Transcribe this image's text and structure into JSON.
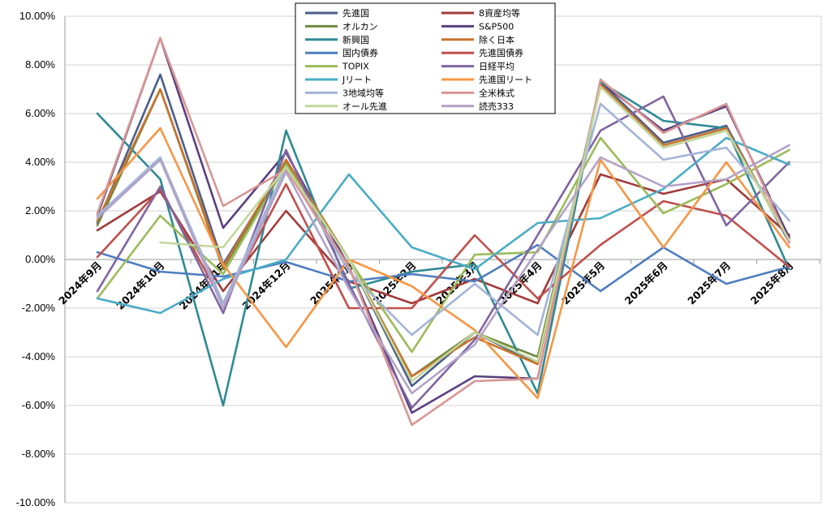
{
  "chart_data": {
    "type": "line",
    "title": "",
    "xlabel": "",
    "ylabel": "",
    "ylim": [
      -0.1,
      0.1
    ],
    "y_ticks": [
      "10.00%",
      "8.00%",
      "6.00%",
      "4.00%",
      "2.00%",
      "0.00%",
      "-2.00%",
      "-4.00%",
      "-6.00%",
      "-8.00%",
      "-10.00%"
    ],
    "y_tick_values": [
      0.1,
      0.08,
      0.06,
      0.04,
      0.02,
      0.0,
      -0.02,
      -0.04,
      -0.06,
      -0.08,
      -0.1
    ],
    "grid": true,
    "legend_position": "top-center",
    "categories": [
      "2024年9月",
      "2024年10月",
      "2024年11月",
      "2024年12月",
      "2025年1月",
      "2025年2月",
      "2025年3月",
      "2025年4月",
      "2025年5月",
      "2025年6月",
      "2025年7月",
      "2025年8月"
    ],
    "series": [
      {
        "name": "先進国",
        "color": "#4a5e8c",
        "values": [
          1.5,
          7.6,
          -0.2,
          4.0,
          0.0,
          -5.2,
          -3.0,
          -4.3,
          7.3,
          4.8,
          5.5,
          0.7
        ]
      },
      {
        "name": "8資産均等",
        "color": "#a23b3b",
        "values": [
          1.2,
          2.8,
          -1.3,
          2.0,
          -0.9,
          -1.8,
          -0.8,
          -1.8,
          3.5,
          2.7,
          3.3,
          1.0
        ]
      },
      {
        "name": "オルカン",
        "color": "#6e8b3d",
        "values": [
          1.4,
          7.0,
          -0.4,
          4.0,
          0.0,
          -4.8,
          -3.0,
          -4.0,
          7.1,
          4.6,
          5.3,
          0.8
        ]
      },
      {
        "name": "S&P500",
        "color": "#5b3f80",
        "values": [
          1.8,
          9.1,
          1.3,
          4.4,
          -0.3,
          -6.3,
          -4.8,
          -4.9,
          7.3,
          5.3,
          6.3,
          0.9
        ]
      },
      {
        "name": "新興国",
        "color": "#2e8a94",
        "values": [
          6.0,
          3.3,
          -6.0,
          5.3,
          -1.2,
          -0.5,
          -0.2,
          -5.5,
          7.3,
          5.7,
          5.4,
          -0.4
        ]
      },
      {
        "name": "除く日本",
        "color": "#c8732e",
        "values": [
          1.6,
          7.0,
          -0.3,
          4.1,
          0.0,
          -4.8,
          -3.2,
          -4.3,
          7.2,
          4.7,
          5.4,
          0.8
        ]
      },
      {
        "name": "国内債券",
        "color": "#4f7ec0",
        "values": [
          0.3,
          -0.5,
          -0.7,
          -0.1,
          -0.9,
          -0.6,
          -0.9,
          0.6,
          -1.3,
          0.5,
          -1.0,
          -0.3
        ]
      },
      {
        "name": "先進国債券",
        "color": "#c0504d",
        "values": [
          0.1,
          2.9,
          -1.8,
          3.1,
          -2.0,
          -2.0,
          1.0,
          -1.6,
          0.6,
          2.4,
          1.8,
          -0.3
        ]
      },
      {
        "name": "TOPIX",
        "color": "#9bbb59",
        "values": [
          -1.6,
          1.8,
          -0.6,
          3.9,
          0.0,
          -3.8,
          0.2,
          0.3,
          5.0,
          1.9,
          3.1,
          4.5
        ]
      },
      {
        "name": "日経平均",
        "color": "#8064a2",
        "values": [
          -1.3,
          3.0,
          -2.2,
          4.5,
          -1.0,
          -6.1,
          -3.3,
          1.0,
          5.3,
          6.7,
          1.4,
          4.0
        ]
      },
      {
        "name": "Jリート",
        "color": "#4bacc6",
        "values": [
          -1.6,
          -2.2,
          -0.8,
          0.0,
          3.5,
          0.5,
          -0.4,
          1.5,
          1.7,
          2.9,
          5.0,
          3.9
        ]
      },
      {
        "name": "先進国リート",
        "color": "#f79646",
        "values": [
          2.5,
          5.4,
          -0.2,
          -3.6,
          0.0,
          -1.1,
          -2.9,
          -5.7,
          4.1,
          0.5,
          4.0,
          0.5
        ]
      },
      {
        "name": "3地域均等",
        "color": "#a3b4d8",
        "values": [
          1.8,
          4.2,
          -1.8,
          3.8,
          -0.5,
          -3.1,
          -1.0,
          -3.1,
          6.4,
          4.1,
          4.6,
          1.6
        ]
      },
      {
        "name": "全米株式",
        "color": "#d99695",
        "values": [
          1.9,
          9.1,
          2.2,
          3.7,
          -0.3,
          -6.8,
          -5.0,
          -4.9,
          7.4,
          5.2,
          6.4,
          0.7
        ]
      },
      {
        "name": "オール先進",
        "color": "#c3d69b",
        "values": [
          null,
          0.7,
          0.5,
          3.8,
          0.0,
          -5.0,
          -3.0,
          -4.2,
          7.1,
          4.6,
          5.3,
          0.8
        ]
      },
      {
        "name": "読売333",
        "color": "#b2a2c7",
        "values": [
          1.7,
          4.1,
          -2.0,
          3.6,
          -1.2,
          -5.5,
          -3.5,
          0.4,
          4.2,
          3.0,
          3.3,
          4.7
        ]
      }
    ],
    "value_units": "percent"
  }
}
